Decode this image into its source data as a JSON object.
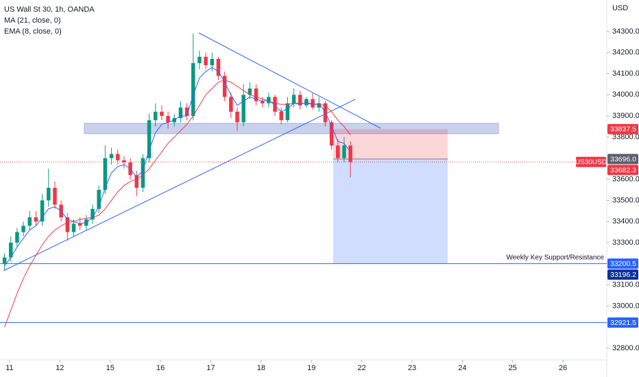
{
  "chart_data": {
    "type": "candlestick",
    "title": "US Wall St 30, 1h, OANDA",
    "indicators": [
      "MA (21, close, 0)",
      "EMA (8, close, 0)"
    ],
    "currency": "USD",
    "x": [
      -0.1,
      0.025,
      0.15,
      0.275,
      0.4,
      0.525,
      0.65,
      0.775,
      0.9,
      1.025,
      1.15,
      1.275,
      1.4,
      1.525,
      1.65,
      1.775,
      1.9,
      2.025,
      2.15,
      2.275,
      2.4,
      2.525,
      2.65,
      2.775,
      2.9,
      3.025,
      3.15,
      3.275,
      3.4,
      3.525,
      3.65,
      3.775,
      3.9,
      4.025,
      4.15,
      4.275,
      4.4,
      4.525,
      4.65,
      4.775,
      4.9,
      5.025,
      5.15,
      5.275,
      5.4,
      5.525,
      5.65,
      5.775,
      5.9,
      6.025,
      6.15,
      6.275,
      6.4,
      6.525,
      6.65,
      6.775
    ],
    "open": [
      33200,
      33230,
      33300,
      33350,
      33380,
      33420,
      33400,
      33500,
      33560,
      33480,
      33420,
      33350,
      33390,
      33380,
      33410,
      33460,
      33550,
      33700,
      33720,
      33690,
      33680,
      33620,
      33560,
      33700,
      33880,
      33920,
      33900,
      33870,
      33890,
      33940,
      33900,
      34150,
      34180,
      34140,
      34170,
      34090,
      33990,
      33920,
      33870,
      34000,
      34030,
      33970,
      33960,
      33990,
      33920,
      33880,
      33960,
      34000,
      33950,
      33980,
      33940,
      33960,
      33870,
      33760,
      33700,
      33760
    ],
    "high": [
      33250,
      33330,
      33370,
      33400,
      33450,
      33450,
      33530,
      33650,
      33590,
      33500,
      33440,
      33410,
      33420,
      33430,
      33480,
      33570,
      33760,
      33750,
      33740,
      33710,
      33700,
      33640,
      33720,
      33910,
      33960,
      33950,
      33920,
      33910,
      33970,
      33960,
      34290,
      34210,
      34200,
      34200,
      34180,
      34110,
      34010,
      33940,
      34050,
      34060,
      34050,
      33990,
      34010,
      34000,
      33940,
      33990,
      34030,
      34020,
      33990,
      34010,
      33990,
      33970,
      33880,
      33790,
      33800,
      33780
    ],
    "low": [
      33170,
      33210,
      33280,
      33330,
      33360,
      33380,
      33380,
      33470,
      33460,
      33400,
      33310,
      33330,
      33360,
      33360,
      33390,
      33440,
      33530,
      33670,
      33670,
      33650,
      33600,
      33520,
      33540,
      33680,
      33850,
      33880,
      33840,
      33850,
      33870,
      33880,
      33880,
      34120,
      34120,
      34110,
      34070,
      33970,
      33890,
      33830,
      33850,
      33980,
      33950,
      33940,
      33940,
      33900,
      33860,
      33870,
      33940,
      33930,
      33940,
      33930,
      33920,
      33850,
      33740,
      33680,
      33680,
      33610
    ],
    "close": [
      33230,
      33300,
      33350,
      33380,
      33420,
      33400,
      33500,
      33560,
      33480,
      33420,
      33350,
      33390,
      33380,
      33410,
      33460,
      33550,
      33700,
      33720,
      33690,
      33680,
      33620,
      33560,
      33700,
      33880,
      33920,
      33900,
      33870,
      33890,
      33940,
      33900,
      34150,
      34180,
      34140,
      34170,
      34090,
      33990,
      33920,
      33870,
      34000,
      34030,
      33970,
      33960,
      33990,
      33920,
      33880,
      33960,
      34000,
      33950,
      33980,
      33940,
      33960,
      33870,
      33760,
      33700,
      33760,
      33682
    ],
    "series": [
      {
        "name": "MA (21, close, 0)",
        "color": "#f23645",
        "values": [
          32900,
          32980,
          33060,
          33130,
          33190,
          33240,
          33290,
          33330,
          33360,
          33380,
          33395,
          33400,
          33410,
          33415,
          33420,
          33430,
          33460,
          33500,
          33540,
          33570,
          33590,
          33600,
          33620,
          33650,
          33690,
          33730,
          33770,
          33800,
          33830,
          33860,
          33900,
          33950,
          34000,
          34030,
          34060,
          34070,
          34060,
          34040,
          34020,
          34000,
          33990,
          33980,
          33970,
          33960,
          33955,
          33955,
          33960,
          33960,
          33960,
          33955,
          33955,
          33950,
          33920,
          33880,
          33850,
          33810
        ]
      },
      {
        "name": "EMA (8, close, 0)",
        "color": "#2962ff",
        "values": [
          33190,
          33230,
          33280,
          33320,
          33360,
          33380,
          33420,
          33460,
          33470,
          33450,
          33410,
          33400,
          33390,
          33395,
          33420,
          33470,
          33560,
          33630,
          33660,
          33670,
          33650,
          33610,
          33640,
          33740,
          33820,
          33860,
          33870,
          33880,
          33900,
          33900,
          34000,
          34080,
          34110,
          34130,
          34110,
          34060,
          34000,
          33950,
          33970,
          33990,
          33980,
          33970,
          33975,
          33950,
          33920,
          33935,
          33960,
          33955,
          33965,
          33955,
          33958,
          33920,
          33850,
          33780,
          33770,
          33730
        ]
      }
    ],
    "up_color": "#089981",
    "down_color": "#f23645",
    "xlim": [
      -0.19,
      11.87
    ],
    "xticks": [
      {
        "value": 0,
        "label": "11"
      },
      {
        "value": 1,
        "label": "12"
      },
      {
        "value": 2,
        "label": "15"
      },
      {
        "value": 3,
        "label": "16"
      },
      {
        "value": 4,
        "label": "17"
      },
      {
        "value": 5,
        "label": "18"
      },
      {
        "value": 6,
        "label": "19"
      },
      {
        "value": 7,
        "label": "22"
      },
      {
        "value": 8,
        "label": "23"
      },
      {
        "value": 9,
        "label": "24"
      },
      {
        "value": 10,
        "label": "25"
      },
      {
        "value": 11,
        "label": "26"
      }
    ],
    "ylim": [
      32745,
      34449
    ],
    "yticks": [
      {
        "value": 32800,
        "label": "32800.0"
      },
      {
        "value": 33000,
        "label": "33000.0"
      },
      {
        "value": 33100,
        "label": "33100.0"
      },
      {
        "value": 33300,
        "label": "33300.0"
      },
      {
        "value": 33400,
        "label": "33400.0"
      },
      {
        "value": 33500,
        "label": "33500.0"
      },
      {
        "value": 33600,
        "label": "33600.0"
      },
      {
        "value": 33800,
        "label": "33800.0"
      },
      {
        "value": 33900,
        "label": "33900.0"
      },
      {
        "value": 34000,
        "label": "34000.0"
      },
      {
        "value": 34100,
        "label": "34100.0"
      },
      {
        "value": 34200,
        "label": "34200.0"
      },
      {
        "value": 34300,
        "label": "34300.0"
      }
    ],
    "grid": false,
    "price_labels": [
      {
        "value": 33837.5,
        "label": "33837.5",
        "color": "#f23645"
      },
      {
        "value": 33696.0,
        "label": "33696.0",
        "color": "#5d606b"
      },
      {
        "value": 33200.5,
        "label": "33200.5",
        "color": "#2962ff",
        "hline": true
      },
      {
        "value": 33196.2,
        "label": "33196.2",
        "color": "#0c3299"
      },
      {
        "value": 32921.5,
        "label": "32921.5",
        "color": "#2962ff",
        "hline": true
      }
    ],
    "last_price": {
      "name": "US30USD",
      "value": 33682.3,
      "label": "33682.3",
      "color": "#f23645"
    },
    "annotation": "Weekly Key Support/Resistance"
  }
}
